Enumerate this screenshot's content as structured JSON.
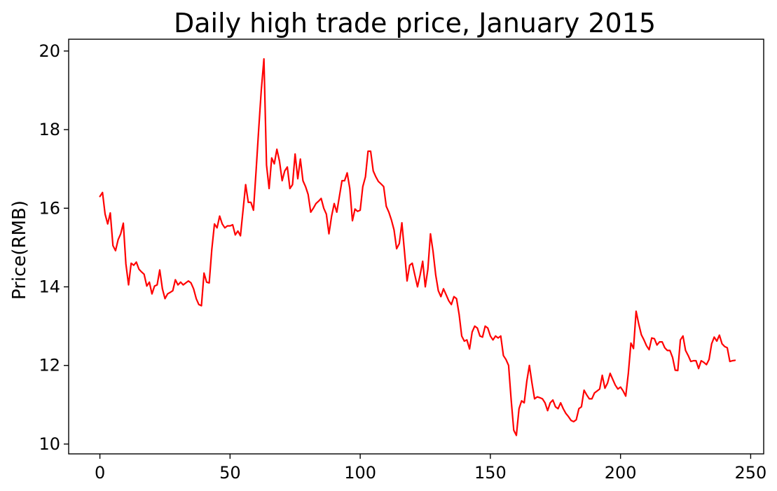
{
  "chart_data": {
    "type": "line",
    "title": "Daily high trade price, January 2015",
    "xlabel": "",
    "ylabel": "Price(RMB)",
    "xlim": [
      -12,
      255
    ],
    "ylim": [
      9.75,
      20.3
    ],
    "xticks": [
      0,
      50,
      100,
      150,
      200,
      250
    ],
    "yticks": [
      10,
      12,
      14,
      16,
      18,
      20
    ],
    "grid": false,
    "series": [
      {
        "color": "#ff0000",
        "values": [
          16.3,
          16.4,
          15.85,
          15.6,
          15.88,
          15.05,
          14.92,
          15.2,
          15.35,
          15.62,
          14.58,
          14.05,
          14.6,
          14.55,
          14.63,
          14.45,
          14.38,
          14.32,
          14.02,
          14.12,
          13.82,
          14.02,
          14.05,
          14.43,
          13.95,
          13.7,
          13.82,
          13.86,
          13.9,
          14.18,
          14.05,
          14.12,
          14.05,
          14.1,
          14.15,
          14.1,
          13.95,
          13.7,
          13.55,
          13.52,
          14.35,
          14.12,
          14.1,
          14.95,
          15.6,
          15.5,
          15.8,
          15.6,
          15.5,
          15.55,
          15.55,
          15.58,
          15.32,
          15.42,
          15.3,
          15.95,
          16.6,
          16.15,
          16.15,
          15.95,
          16.95,
          18.0,
          19.0,
          19.8,
          17.1,
          16.5,
          17.28,
          17.13,
          17.5,
          17.2,
          16.7,
          16.95,
          17.05,
          16.5,
          16.6,
          17.38,
          16.75,
          17.25,
          16.7,
          16.55,
          16.35,
          15.9,
          16.0,
          16.12,
          16.18,
          16.25,
          16.0,
          15.85,
          15.35,
          15.8,
          16.12,
          15.9,
          16.3,
          16.7,
          16.7,
          16.9,
          16.5,
          15.68,
          15.98,
          15.92,
          15.95,
          16.55,
          16.8,
          17.45,
          17.45,
          16.95,
          16.8,
          16.68,
          16.62,
          16.55,
          16.05,
          15.9,
          15.7,
          15.45,
          14.97,
          15.1,
          15.63,
          14.9,
          14.15,
          14.55,
          14.6,
          14.3,
          14.0,
          14.3,
          14.65,
          14.0,
          14.45,
          15.35,
          14.9,
          14.3,
          13.9,
          13.75,
          13.95,
          13.8,
          13.65,
          13.55,
          13.75,
          13.7,
          13.3,
          12.75,
          12.62,
          12.65,
          12.42,
          12.85,
          13.0,
          12.95,
          12.75,
          12.72,
          13.0,
          12.95,
          12.75,
          12.65,
          12.75,
          12.7,
          12.75,
          12.25,
          12.15,
          12.0,
          11.12,
          10.35,
          10.22,
          10.9,
          11.1,
          11.05,
          11.6,
          12.0,
          11.55,
          11.15,
          11.2,
          11.18,
          11.15,
          11.05,
          10.85,
          11.05,
          11.12,
          10.95,
          10.9,
          11.05,
          10.9,
          10.78,
          10.7,
          10.6,
          10.57,
          10.62,
          10.9,
          10.95,
          11.37,
          11.25,
          11.15,
          11.15,
          11.3,
          11.35,
          11.4,
          11.75,
          11.42,
          11.55,
          11.8,
          11.65,
          11.5,
          11.4,
          11.45,
          11.35,
          11.22,
          11.8,
          12.57,
          12.43,
          13.38,
          13.05,
          12.78,
          12.65,
          12.5,
          12.4,
          12.7,
          12.68,
          12.52,
          12.6,
          12.6,
          12.45,
          12.38,
          12.38,
          12.2,
          11.88,
          11.87,
          12.65,
          12.75,
          12.38,
          12.25,
          12.1,
          12.12,
          12.12,
          11.92,
          12.12,
          12.08,
          12.02,
          12.15,
          12.55,
          12.72,
          12.62,
          12.77,
          12.55,
          12.48,
          12.45,
          12.1,
          12.12,
          12.13
        ]
      }
    ]
  }
}
